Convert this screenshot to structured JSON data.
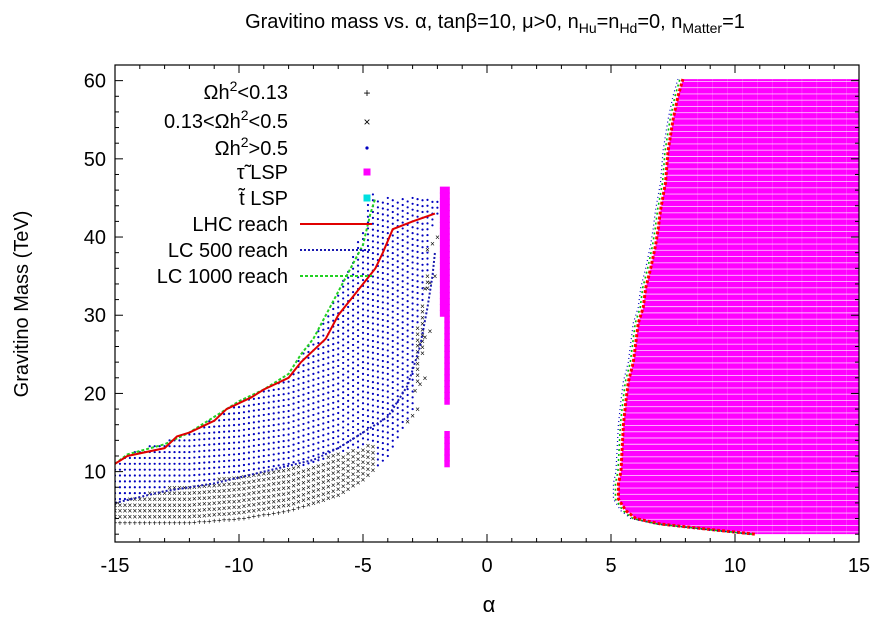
{
  "chart_data": {
    "type": "scatter",
    "title": {
      "main": "Gravitino mass vs. α, tanβ=10, μ>0, n",
      "sub1": "Hu",
      "eq1": "=n",
      "sub2": "Hd",
      "eq2": "=0, n",
      "sub3": "Matter",
      "eq3": "=1"
    },
    "xlabel": "α",
    "ylabel": "Gravitino Mass (TeV)",
    "xlim": [
      -15,
      15
    ],
    "ylim": [
      1,
      62
    ],
    "xticks": [
      -15,
      -10,
      -5,
      0,
      5,
      10,
      15
    ],
    "yticks": [
      10,
      20,
      30,
      40,
      50,
      60
    ],
    "grid": false,
    "legend_position": "top-left",
    "colors": {
      "omega_low": "#ff0000",
      "omega_mid": "#00c000",
      "omega_high": "#0000c0",
      "stau_lsp": "#ff00ff",
      "stop_lsp": "#00e0e0",
      "lhc": "#e00000",
      "lc500": "#1a1ab0",
      "lc1000": "#22d022"
    },
    "legend": [
      {
        "key": "omega_low",
        "text": "Ωh",
        "sup": "2",
        "rest": "<0.13"
      },
      {
        "key": "omega_mid",
        "text": "0.13<Ωh",
        "sup": "2",
        "rest": "<0.5"
      },
      {
        "key": "omega_high",
        "text": "Ωh",
        "sup": "2",
        "rest": ">0.5"
      },
      {
        "key": "stau_lsp",
        "text": "τ̃ LSP",
        "sup": "",
        "rest": ""
      },
      {
        "key": "stop_lsp",
        "text": "t̃ LSP",
        "sup": "",
        "rest": ""
      },
      {
        "key": "lhc",
        "text": "LHC reach",
        "sup": "",
        "rest": ""
      },
      {
        "key": "lc500",
        "text": "LC 500 reach",
        "sup": "",
        "rest": ""
      },
      {
        "key": "lc1000",
        "text": "LC 1000 reach",
        "sup": "",
        "rest": ""
      }
    ],
    "left_region": {
      "upper_edge": [
        [
          -15,
          11
        ],
        [
          -14.5,
          12.2
        ],
        [
          -13,
          14
        ],
        [
          -12,
          15
        ],
        [
          -11,
          17
        ],
        [
          -10,
          19
        ],
        [
          -9,
          20.5
        ],
        [
          -8,
          22
        ],
        [
          -7.5,
          25
        ],
        [
          -7,
          27
        ],
        [
          -6.5,
          30
        ],
        [
          -6,
          33
        ],
        [
          -5.5,
          37
        ],
        [
          -5,
          41
        ],
        [
          -4.7,
          46
        ],
        [
          -4.3,
          45
        ]
      ],
      "stau_edge": [
        [
          -15,
          3.5
        ],
        [
          -12,
          3.5
        ],
        [
          -10,
          4
        ],
        [
          -8,
          5
        ],
        [
          -6,
          7
        ],
        [
          -5,
          9
        ],
        [
          -4,
          12
        ],
        [
          -3,
          18
        ],
        [
          -2.5,
          27
        ],
        [
          -2.3,
          40
        ],
        [
          -2.1,
          43
        ]
      ],
      "green_band_top": [
        [
          -15,
          6
        ],
        [
          -13,
          8
        ],
        [
          -11,
          9
        ],
        [
          -9,
          10
        ],
        [
          -7,
          11
        ],
        [
          -6,
          12.5
        ],
        [
          -5,
          13
        ],
        [
          -4.5,
          14
        ]
      ],
      "red_band_top": [
        [
          -15,
          3.7
        ],
        [
          -12,
          4
        ],
        [
          -10,
          4.5
        ],
        [
          -8,
          5.3
        ],
        [
          -6,
          6.5
        ],
        [
          -5,
          8.5
        ]
      ],
      "diag_green_strip": [
        [
          -2.8,
          18
        ],
        [
          -2.5,
          22
        ],
        [
          -2.3,
          28
        ],
        [
          -2.1,
          35
        ],
        [
          -2,
          40
        ]
      ]
    },
    "stau_left_strip": {
      "x": [
        -1.9,
        -1.5
      ],
      "y_segments": [
        [
          19,
          46
        ],
        [
          11,
          15
        ]
      ]
    },
    "right_region": {
      "boundary": [
        [
          10.8,
          2
        ],
        [
          9,
          2.6
        ],
        [
          7,
          3.3
        ],
        [
          6,
          4
        ],
        [
          5.6,
          5
        ],
        [
          5.3,
          6.5
        ],
        [
          5.3,
          8.5
        ],
        [
          5.4,
          10
        ],
        [
          5.45,
          13
        ],
        [
          5.5,
          16
        ],
        [
          5.6,
          19
        ],
        [
          5.7,
          21.5
        ],
        [
          5.9,
          24
        ],
        [
          6.0,
          26.5
        ],
        [
          6.1,
          29
        ],
        [
          6.3,
          31
        ],
        [
          6.4,
          33.5
        ],
        [
          6.6,
          36
        ],
        [
          6.8,
          39
        ],
        [
          6.9,
          41
        ],
        [
          7.0,
          43.5
        ],
        [
          7.2,
          47
        ],
        [
          7.3,
          51
        ],
        [
          7.5,
          55
        ],
        [
          7.7,
          58
        ],
        [
          7.9,
          60.2
        ]
      ],
      "x_max": 15,
      "y_max": 60.2
    },
    "lhc_reach": [
      [
        -15,
        11
      ],
      [
        -14.5,
        12
      ],
      [
        -13,
        13
      ],
      [
        -12.5,
        14.5
      ],
      [
        -12,
        15
      ],
      [
        -11,
        16.5
      ],
      [
        -10.5,
        18
      ],
      [
        -9.5,
        19.5
      ],
      [
        -9,
        20.5
      ],
      [
        -8,
        22
      ],
      [
        -7.5,
        24
      ],
      [
        -7,
        25.5
      ],
      [
        -6.5,
        27
      ],
      [
        -6,
        30
      ],
      [
        -5.5,
        32
      ],
      [
        -5,
        34
      ],
      [
        -4.5,
        36
      ],
      [
        -4.2,
        38
      ],
      [
        -3.8,
        41
      ],
      [
        -3,
        42
      ],
      [
        -2.1,
        43
      ]
    ],
    "lc500_reach": [
      [
        -15,
        6
      ],
      [
        -13,
        7.5
      ],
      [
        -11,
        8.5
      ],
      [
        -9,
        10
      ],
      [
        -7,
        11.5
      ],
      [
        -6,
        13
      ],
      [
        -5,
        15
      ],
      [
        -4,
        17
      ],
      [
        -3.2,
        21
      ],
      [
        -2.7,
        26
      ],
      [
        -2.4,
        31
      ],
      [
        -2.2,
        35
      ],
      [
        -2.1,
        38
      ]
    ],
    "lc1000_reach": [
      [
        -15,
        11
      ],
      [
        -14.5,
        12.2
      ],
      [
        -13,
        13.5
      ],
      [
        -12,
        15
      ],
      [
        -11,
        17
      ],
      [
        -10,
        19
      ],
      [
        -9,
        20.5
      ],
      [
        -8,
        22.5
      ],
      [
        -7.5,
        25
      ],
      [
        -7,
        27
      ],
      [
        -6.5,
        30
      ],
      [
        -6,
        33
      ],
      [
        -5.5,
        36
      ],
      [
        -5,
        39
      ],
      [
        -4.7,
        43
      ],
      [
        -4.5,
        45
      ]
    ]
  }
}
